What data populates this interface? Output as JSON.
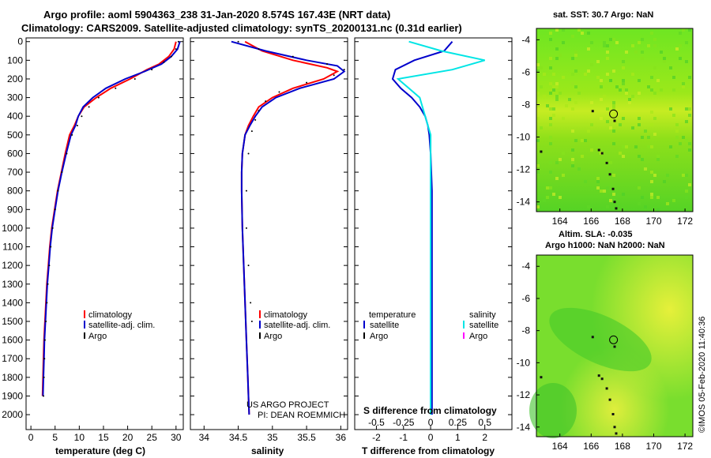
{
  "title_line1": "Argo profile: aoml 5904363_238 31-Jan-2020 8.574S 167.43E (NRT data)",
  "title_line2": "Climatology: CARS2009. Satellite-adjusted climatology: synTS_20200131.nc (0.31d earlier)",
  "colors": {
    "clim": "#ff0000",
    "sat": "#0000cc",
    "argo": "#000000",
    "sat_sal": "#00e5e5",
    "argo_sal": "#ff00ff"
  },
  "chart_data": [
    {
      "type": "line",
      "id": "temperature",
      "xlabel": "temperature (deg C)",
      "xlim": [
        -1,
        31.5
      ],
      "ylim": [
        2080,
        -20
      ],
      "xticks": [
        0,
        5,
        10,
        15,
        20,
        25,
        30
      ],
      "yticks": [
        0,
        100,
        200,
        300,
        400,
        500,
        600,
        700,
        800,
        900,
        1000,
        1100,
        1200,
        1300,
        1400,
        1500,
        1600,
        1700,
        1800,
        1900,
        2000
      ],
      "legend": {
        "position": "lower-right",
        "entries": [
          "climatology",
          "satellite-adj. clim.",
          "Argo"
        ]
      },
      "series": [
        {
          "name": "climatology",
          "color_key": "clim",
          "style": "line",
          "x": [
            30.0,
            29.6,
            28.5,
            26.5,
            24.0,
            20.5,
            16.5,
            13.5,
            11.0,
            9.8,
            9.0,
            8.0,
            7.1,
            6.3,
            5.5,
            4.9,
            4.3,
            3.9,
            3.6,
            3.3,
            3.1,
            2.9,
            2.7,
            2.6,
            2.5,
            2.4
          ],
          "y": [
            0,
            40,
            80,
            120,
            150,
            200,
            250,
            300,
            350,
            400,
            450,
            500,
            600,
            700,
            800,
            900,
            1000,
            1100,
            1200,
            1300,
            1400,
            1500,
            1600,
            1700,
            1800,
            1900
          ]
        },
        {
          "name": "satellite-adj. clim.",
          "color_key": "sat",
          "style": "line",
          "x": [
            30.8,
            30.3,
            29.0,
            27.0,
            23.5,
            19.5,
            15.5,
            12.8,
            10.8,
            9.8,
            9.2,
            8.3,
            7.3,
            6.4,
            5.6,
            5.0,
            4.4,
            4.0,
            3.7,
            3.4,
            3.2,
            3.0,
            2.8,
            2.7,
            2.6,
            2.5
          ],
          "y": [
            0,
            40,
            80,
            120,
            160,
            200,
            250,
            300,
            350,
            400,
            450,
            500,
            600,
            700,
            800,
            900,
            1000,
            1100,
            1200,
            1300,
            1400,
            1500,
            1600,
            1700,
            1800,
            1900
          ]
        },
        {
          "name": "Argo",
          "color_key": "argo",
          "style": "dots",
          "x": [
            30.5,
            30.0,
            29.0,
            27.5,
            25.0,
            21.5,
            17.5,
            14.0,
            12.0,
            10.5,
            9.6,
            8.5,
            7.4,
            6.4,
            5.6,
            5.0,
            4.5,
            4.1,
            3.8,
            3.5,
            3.3,
            3.1,
            2.9,
            2.8,
            2.7,
            2.6
          ],
          "y": [
            0,
            40,
            80,
            110,
            150,
            200,
            250,
            300,
            350,
            400,
            450,
            500,
            600,
            700,
            800,
            900,
            1000,
            1100,
            1200,
            1300,
            1400,
            1500,
            1600,
            1700,
            1800,
            1900
          ]
        }
      ]
    },
    {
      "type": "line",
      "id": "salinity",
      "xlabel": "salinity",
      "xlim": [
        33.8,
        36.1
      ],
      "ylim": [
        2080,
        -20
      ],
      "xticks": [
        34,
        34.5,
        35,
        35.5,
        36
      ],
      "legend": {
        "position": "lower-right",
        "entries": [
          "climatology",
          "satellite-adj. clim.",
          "Argo"
        ]
      },
      "annotations": [
        "US ARGO PROJECT",
        "PI: DEAN ROEMMICH"
      ],
      "series": [
        {
          "name": "climatology",
          "color_key": "clim",
          "style": "line",
          "x": [
            34.6,
            34.85,
            35.3,
            35.8,
            35.95,
            35.75,
            35.3,
            35.0,
            34.8,
            34.72,
            34.65,
            34.6,
            34.56,
            34.55,
            34.55,
            34.56,
            34.58,
            34.6,
            34.62,
            34.64,
            34.65,
            34.66
          ],
          "y": [
            0,
            50,
            100,
            140,
            160,
            200,
            250,
            300,
            350,
            400,
            450,
            500,
            600,
            700,
            800,
            1000,
            1200,
            1400,
            1600,
            1800,
            1900,
            2000
          ]
        },
        {
          "name": "satellite-adj. clim.",
          "color_key": "sat",
          "style": "line",
          "x": [
            34.4,
            34.9,
            35.5,
            35.95,
            36.05,
            35.9,
            35.4,
            35.05,
            34.85,
            34.75,
            34.67,
            34.6,
            34.56,
            34.55,
            34.55,
            34.56,
            34.58,
            34.6,
            34.62,
            34.64,
            34.65,
            34.66
          ],
          "y": [
            0,
            50,
            100,
            130,
            160,
            200,
            250,
            300,
            350,
            400,
            450,
            500,
            600,
            700,
            800,
            1000,
            1200,
            1400,
            1600,
            1800,
            1900,
            2000
          ]
        },
        {
          "name": "Argo",
          "color_key": "argo",
          "style": "dots",
          "x": [
            34.5,
            34.8,
            35.3,
            35.8,
            36.05,
            35.9,
            35.5,
            35.1,
            34.9,
            34.8,
            34.75,
            34.7,
            34.65,
            34.62,
            34.62,
            34.65,
            34.68,
            34.7
          ],
          "y": [
            0,
            40,
            80,
            120,
            150,
            180,
            220,
            270,
            320,
            370,
            420,
            480,
            600,
            800,
            1000,
            1200,
            1400,
            1500
          ]
        }
      ]
    },
    {
      "type": "line",
      "id": "difference",
      "xlabel": "T difference from climatology",
      "x2label": "S difference from climatology",
      "xlim": [
        -2.8,
        3.0
      ],
      "x2lim": [
        -0.7,
        0.75
      ],
      "ylim": [
        2080,
        -20
      ],
      "xticks": [
        -2,
        -1,
        0,
        1,
        2
      ],
      "x2ticks": [
        -0.5,
        -0.25,
        0,
        0.25,
        0.5
      ],
      "x2ticklabels": [
        "-0.5",
        "-0.25",
        "0",
        "0.25",
        "0.5"
      ],
      "legend": {
        "position": "lower",
        "groups": [
          {
            "title": "temperature",
            "entries": [
              "satellite",
              "Argo"
            ]
          },
          {
            "title": "salinity",
            "entries": [
              "satellite",
              "Argo"
            ]
          }
        ]
      },
      "series": [
        {
          "name": "T satellite",
          "color_key": "sat",
          "style": "line",
          "x": [
            0.8,
            0.5,
            -0.6,
            -1.3,
            -1.4,
            -1.1,
            -0.7,
            -0.4,
            -0.2,
            -0.1,
            -0.05,
            0.0,
            0.05,
            0.05,
            0.05,
            0.05,
            0.05
          ],
          "y": [
            0,
            50,
            100,
            150,
            200,
            250,
            300,
            350,
            400,
            450,
            500,
            600,
            800,
            1000,
            1400,
            1800,
            2000
          ]
        },
        {
          "name": "S satellite",
          "color_key": "sat_sal",
          "style": "line",
          "x": [
            -0.2,
            0.1,
            0.5,
            0.2,
            -0.3,
            -0.2,
            -0.1,
            -0.05,
            0.0,
            0.0,
            0.0,
            0.0,
            0.0
          ],
          "y": [
            0,
            50,
            100,
            150,
            200,
            250,
            300,
            400,
            500,
            800,
            1200,
            1600,
            2000
          ]
        }
      ]
    },
    {
      "type": "heatmap",
      "id": "sst-map",
      "title": "sat. SST: 30.7 Argo: NaN",
      "xlim": [
        162.5,
        172.5
      ],
      "ylim": [
        -14.6,
        -3.3
      ],
      "xticks": [
        164,
        166,
        168,
        170,
        172
      ],
      "yticks": [
        -4,
        -6,
        -8,
        -10,
        -12,
        -14
      ],
      "float_position": {
        "lon": 167.43,
        "lat": -8.574
      }
    },
    {
      "type": "heatmap",
      "id": "sla-map",
      "title_line1": "Altim. SLA: -0.035",
      "title_line2": "Argo h1000: NaN h2000: NaN",
      "xlim": [
        162.5,
        172.5
      ],
      "ylim": [
        -14.6,
        -3.3
      ],
      "xticks": [
        164,
        166,
        168,
        170,
        172
      ],
      "yticks": [
        -4,
        -6,
        -8,
        -10,
        -12,
        -14
      ],
      "float_position": {
        "lon": 167.43,
        "lat": -8.574
      }
    }
  ],
  "footer": "©IMOS 05-Feb-2020 11:40:36"
}
